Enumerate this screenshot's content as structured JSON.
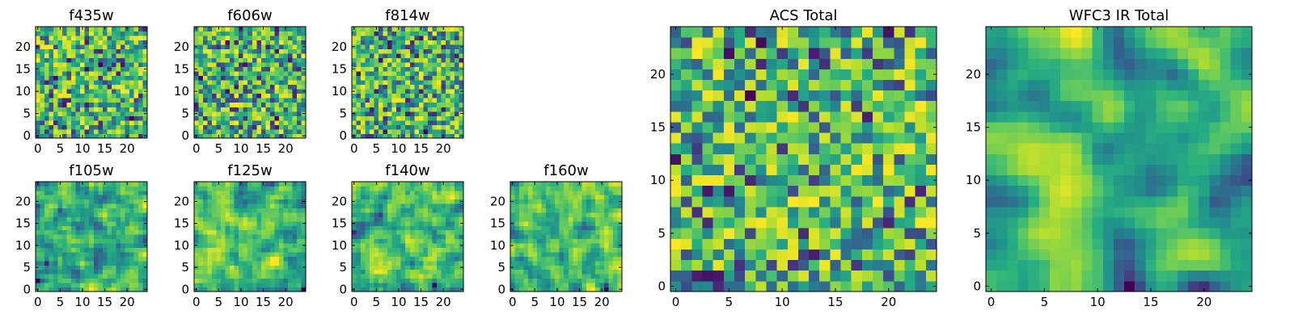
{
  "colormap": "viridis",
  "chart_data": [
    {
      "type": "heatmap",
      "title": "f435w",
      "size": 25,
      "seed": 11,
      "smooth": 0,
      "xticks": [
        0,
        5,
        10,
        15,
        20
      ],
      "yticks": [
        0,
        5,
        10,
        15,
        20
      ],
      "xlim": [
        -0.5,
        24.5
      ],
      "ylim": [
        -0.5,
        24.5
      ],
      "grid": false
    },
    {
      "type": "heatmap",
      "title": "f606w",
      "size": 25,
      "seed": 23,
      "smooth": 0,
      "xticks": [
        0,
        5,
        10,
        15,
        20
      ],
      "yticks": [
        0,
        5,
        10,
        15,
        20
      ],
      "xlim": [
        -0.5,
        24.5
      ],
      "ylim": [
        -0.5,
        24.5
      ],
      "grid": false
    },
    {
      "type": "heatmap",
      "title": "f814w",
      "size": 25,
      "seed": 37,
      "smooth": 0,
      "xticks": [
        0,
        5,
        10,
        15,
        20
      ],
      "yticks": [
        0,
        5,
        10,
        15,
        20
      ],
      "xlim": [
        -0.5,
        24.5
      ],
      "ylim": [
        -0.5,
        24.5
      ],
      "grid": false
    },
    {
      "type": "heatmap",
      "title": "f105w",
      "size": 25,
      "seed": 41,
      "smooth": 1,
      "xticks": [
        0,
        5,
        10,
        15,
        20
      ],
      "yticks": [
        0,
        5,
        10,
        15,
        20
      ],
      "xlim": [
        -0.5,
        24.5
      ],
      "ylim": [
        -0.5,
        24.5
      ],
      "grid": false
    },
    {
      "type": "heatmap",
      "title": "f125w",
      "size": 25,
      "seed": 53,
      "smooth": 1,
      "xticks": [
        0,
        5,
        10,
        15,
        20
      ],
      "yticks": [
        0,
        5,
        10,
        15,
        20
      ],
      "xlim": [
        -0.5,
        24.5
      ],
      "ylim": [
        -0.5,
        24.5
      ],
      "grid": false
    },
    {
      "type": "heatmap",
      "title": "f140w",
      "size": 25,
      "seed": 67,
      "smooth": 1,
      "xticks": [
        0,
        5,
        10,
        15,
        20
      ],
      "yticks": [
        0,
        5,
        10,
        15,
        20
      ],
      "xlim": [
        -0.5,
        24.5
      ],
      "ylim": [
        -0.5,
        24.5
      ],
      "grid": false
    },
    {
      "type": "heatmap",
      "title": "f160w",
      "size": 25,
      "seed": 79,
      "smooth": 1,
      "xticks": [
        0,
        5,
        10,
        15,
        20
      ],
      "yticks": [
        0,
        5,
        10,
        15,
        20
      ],
      "xlim": [
        -0.5,
        24.5
      ],
      "ylim": [
        -0.5,
        24.5
      ],
      "grid": false
    },
    {
      "type": "heatmap",
      "title": "ACS Total",
      "size": 25,
      "seed": 97,
      "smooth": 0,
      "xticks": [
        0,
        5,
        10,
        15,
        20
      ],
      "yticks": [
        0,
        5,
        10,
        15,
        20
      ],
      "xlim": [
        -0.5,
        24.5
      ],
      "ylim": [
        -0.5,
        24.5
      ],
      "grid": false
    },
    {
      "type": "heatmap",
      "title": "WFC3 IR Total",
      "size": 25,
      "seed": 101,
      "smooth": 2,
      "xticks": [
        0,
        5,
        10,
        15,
        20
      ],
      "yticks": [
        0,
        5,
        10,
        15,
        20
      ],
      "xlim": [
        -0.5,
        24.5
      ],
      "ylim": [
        -0.5,
        24.5
      ],
      "grid": false
    }
  ]
}
